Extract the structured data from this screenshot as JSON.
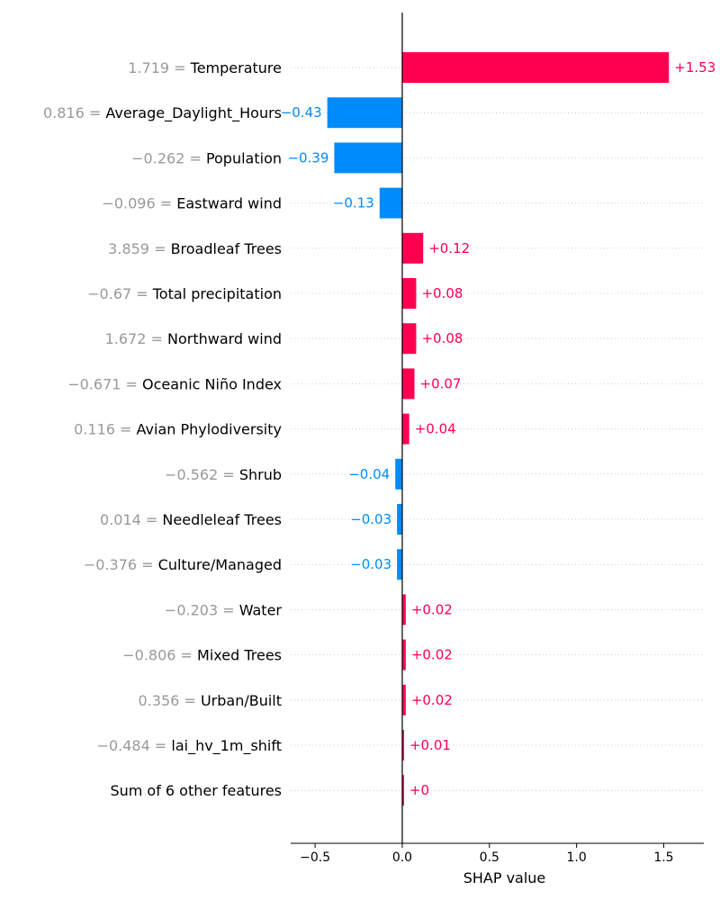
{
  "chart_data": {
    "type": "bar",
    "orientation": "horizontal",
    "xlabel": "SHAP value",
    "xlim": [
      -0.64,
      1.73
    ],
    "xticks": [
      -0.5,
      0.0,
      0.5,
      1.0,
      1.5
    ],
    "xtick_labels": [
      "−0.5",
      "0.0",
      "0.5",
      "1.0",
      "1.5"
    ],
    "grid": "horizontal dotted",
    "colors": {
      "positive": "#ff0051",
      "negative": "#008bfb",
      "feature_value": "#999999",
      "feature_name": "#000000"
    },
    "rows": [
      {
        "feature_value": "1.719",
        "feature": "Temperature",
        "shap": 1.53,
        "label": "+1.53"
      },
      {
        "feature_value": "0.816",
        "feature": "Average_Daylight_Hours",
        "shap": -0.43,
        "label": "−0.43"
      },
      {
        "feature_value": "−0.262",
        "feature": "Population",
        "shap": -0.39,
        "label": "−0.39"
      },
      {
        "feature_value": "−0.096",
        "feature": "Eastward wind",
        "shap": -0.13,
        "label": "−0.13"
      },
      {
        "feature_value": "3.859",
        "feature": "Broadleaf Trees",
        "shap": 0.12,
        "label": "+0.12"
      },
      {
        "feature_value": "−0.67",
        "feature": "Total precipitation",
        "shap": 0.08,
        "label": "+0.08"
      },
      {
        "feature_value": "1.672",
        "feature": "Northward wind",
        "shap": 0.08,
        "label": "+0.08"
      },
      {
        "feature_value": "−0.671",
        "feature": "Oceanic Niño Index",
        "shap": 0.07,
        "label": "+0.07"
      },
      {
        "feature_value": "0.116",
        "feature": "Avian Phylodiversity",
        "shap": 0.04,
        "label": "+0.04"
      },
      {
        "feature_value": "−0.562",
        "feature": "Shrub",
        "shap": -0.04,
        "label": "−0.04"
      },
      {
        "feature_value": "0.014",
        "feature": "Needleleaf Trees",
        "shap": -0.03,
        "label": "−0.03"
      },
      {
        "feature_value": "−0.376",
        "feature": "Culture/Managed",
        "shap": -0.03,
        "label": "−0.03"
      },
      {
        "feature_value": "−0.203",
        "feature": "Water",
        "shap": 0.02,
        "label": "+0.02"
      },
      {
        "feature_value": "−0.806",
        "feature": "Mixed Trees",
        "shap": 0.02,
        "label": "+0.02"
      },
      {
        "feature_value": "0.356",
        "feature": "Urban/Built",
        "shap": 0.02,
        "label": "+0.02"
      },
      {
        "feature_value": "−0.484",
        "feature": "lai_hv_1m_shift",
        "shap": 0.01,
        "label": "+0.01"
      },
      {
        "feature_value": "",
        "feature": "Sum of 6 other features",
        "shap": 0.0,
        "label": "+0"
      }
    ]
  }
}
